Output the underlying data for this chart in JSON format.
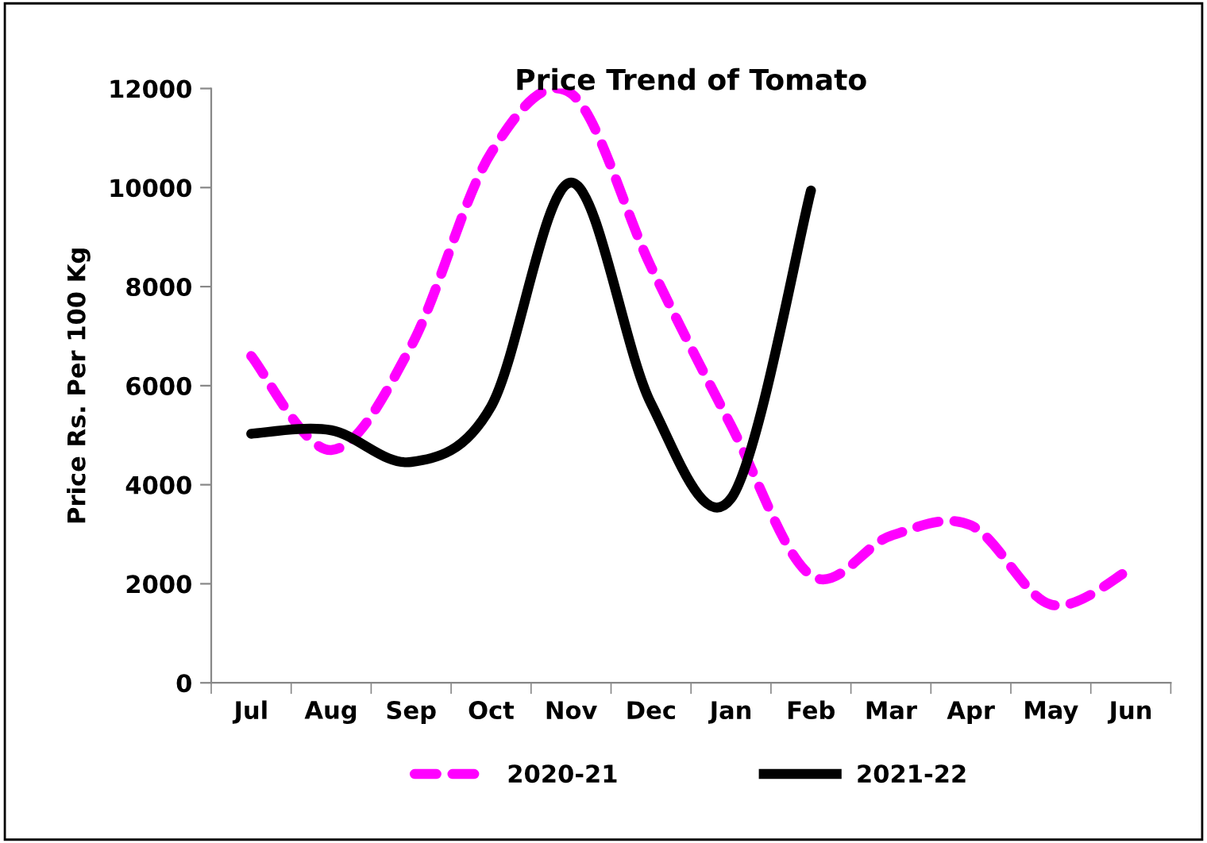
{
  "chart_data": {
    "type": "line",
    "title": "Price Trend of Tomato",
    "ylabel": "Price Rs. Per 100 Kg",
    "categories": [
      "Jul",
      "Aug",
      "Sep",
      "Oct",
      "Nov",
      "Dec",
      "Jan",
      "Feb",
      "Mar",
      "Apr",
      "May",
      "Jun"
    ],
    "series": [
      {
        "name": "2020-21",
        "color": "#ff00ff",
        "line_style": "dashed",
        "values": [
          6600,
          4700,
          6800,
          10700,
          11900,
          8400,
          5200,
          2170,
          2970,
          3180,
          1580,
          2300
        ]
      },
      {
        "name": "2021-22",
        "color": "#000000",
        "line_style": "solid",
        "values": [
          5030,
          5100,
          4460,
          5580,
          10100,
          5640,
          3720,
          9940,
          null,
          null,
          null,
          null
        ]
      }
    ],
    "ylim": [
      0,
      12000
    ],
    "yticks": [
      0,
      2000,
      4000,
      6000,
      8000,
      10000,
      12000
    ],
    "grid": false,
    "legend": "bottom",
    "marker": "none"
  }
}
